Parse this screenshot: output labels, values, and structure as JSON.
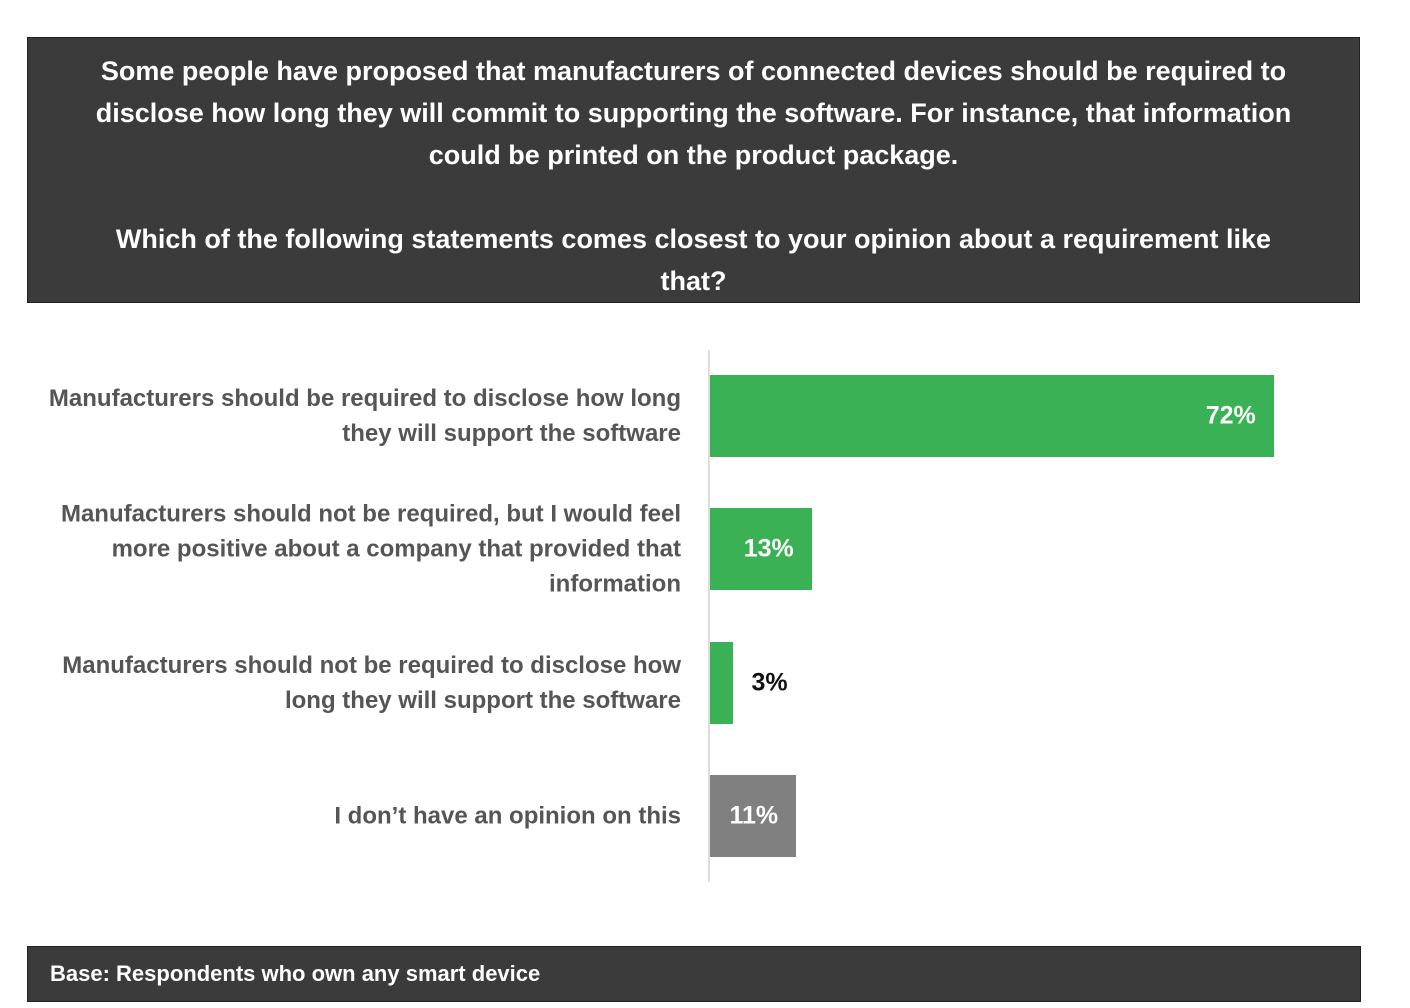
{
  "chart_data": {
    "type": "barh",
    "title": "Some people have proposed that manufacturers of connected devices should be required to disclose how long they will commit to supporting the software. For instance, that information could be printed on the product package.",
    "subtitle": "Which of the following statements comes closest to your opinion about a requirement like that?",
    "categories": [
      "Manufacturers should be required to disclose how long they will support the software",
      "Manufacturers should not be required, but I would feel more positive about a company that provided that information",
      "Manufacturers should not be required to disclose how long they will support the software",
      "I don’t have an opinion on this"
    ],
    "values": [
      72,
      13,
      3,
      11
    ],
    "value_labels": [
      "72%",
      "13%",
      "3%",
      "11%"
    ],
    "colors": [
      "#3ab154",
      "#3ab154",
      "#3ab154",
      "#808080"
    ],
    "xlim": [
      0,
      100
    ],
    "footnote": "Base: Respondents who own any smart device"
  }
}
